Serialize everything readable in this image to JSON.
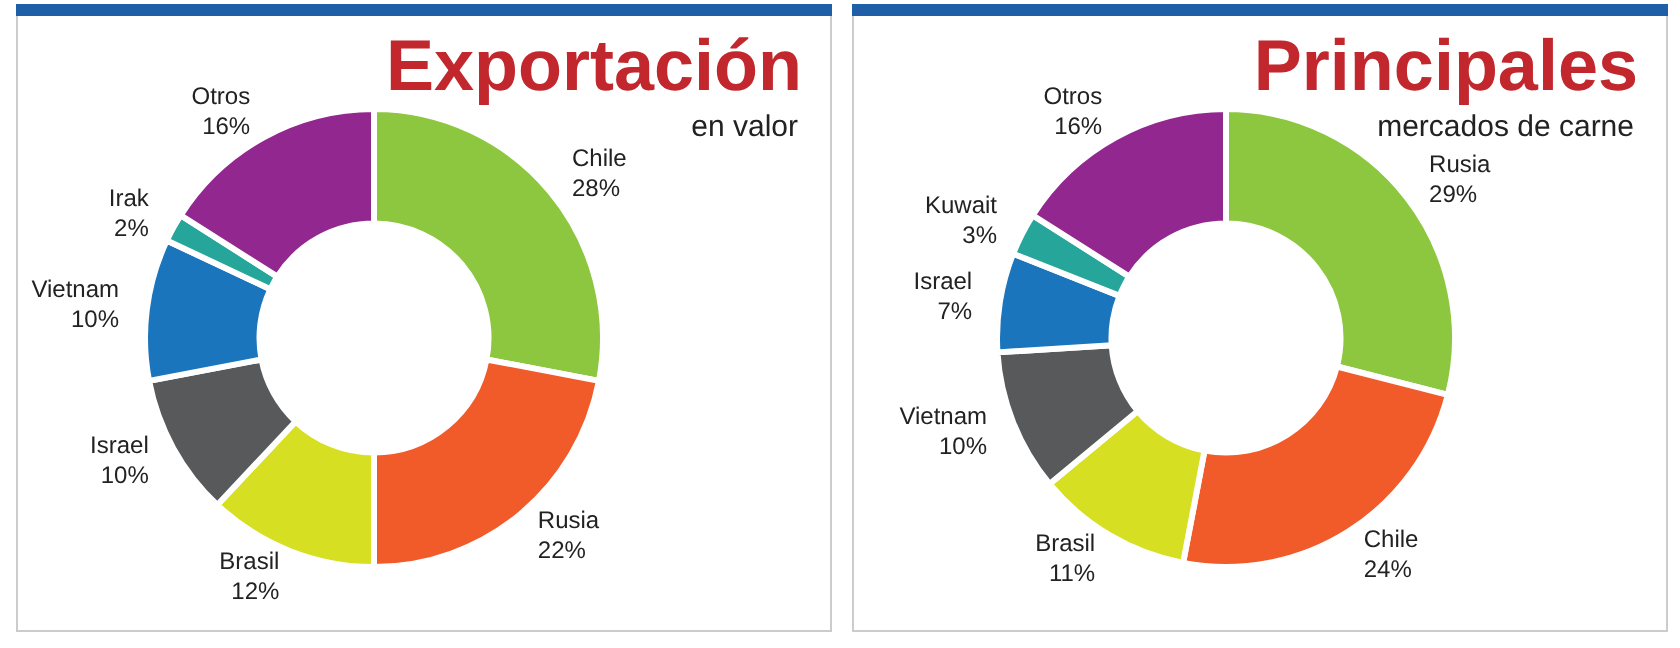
{
  "chart_data": [
    {
      "type": "donut",
      "title": "Exportación",
      "subtitle": "en valor",
      "categories": [
        "Chile",
        "Rusia",
        "Brasil",
        "Israel",
        "Vietnam",
        "Irak",
        "Otros"
      ],
      "values": [
        28,
        22,
        12,
        10,
        10,
        2,
        16
      ],
      "value_labels": [
        "28%",
        "22%",
        "12%",
        "10%",
        "10%",
        "2%",
        "16%"
      ],
      "colors": [
        "#8dc63f",
        "#f15a29",
        "#d7df23",
        "#58595b",
        "#1b75bc",
        "#26a69a",
        "#92278f"
      ]
    },
    {
      "type": "donut",
      "title": "Principales",
      "subtitle": "mercados de carne",
      "categories": [
        "Rusia",
        "Chile",
        "Brasil",
        "Vietnam",
        "Israel",
        "Kuwait",
        "Otros"
      ],
      "values": [
        29,
        24,
        11,
        10,
        7,
        3,
        16
      ],
      "value_labels": [
        "29%",
        "24%",
        "11%",
        "10%",
        "7%",
        "3%",
        "16%"
      ],
      "colors": [
        "#8dc63f",
        "#f15a29",
        "#d7df23",
        "#58595b",
        "#1b75bc",
        "#26a69a",
        "#92278f"
      ]
    }
  ]
}
